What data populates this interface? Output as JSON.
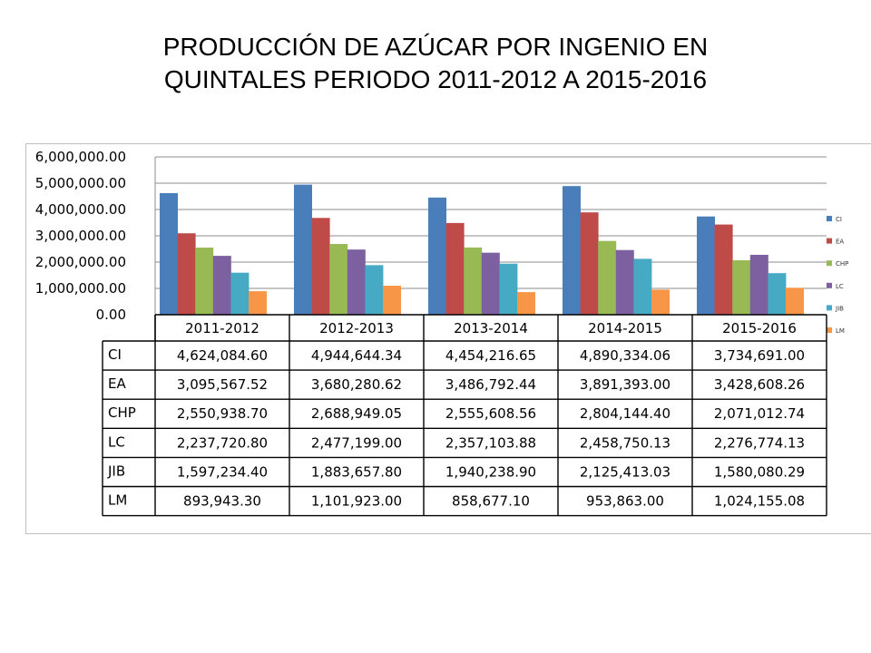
{
  "title": {
    "line1": "PRODUCCIÓN DE AZÚCAR POR INGENIO EN",
    "line2": "QUINTALES PERIODO 2011-2012  A  2015-2016"
  },
  "chart_data": {
    "type": "bar",
    "categories": [
      "2011-2012",
      "2012-2013",
      "2013-2014",
      "2014-2015",
      "2015-2016"
    ],
    "series": [
      {
        "name": "CI",
        "color": "#4a7ebb",
        "values": [
          4624084.6,
          4944644.34,
          4454216.65,
          4890334.06,
          3734691.0
        ],
        "labels": [
          "4,624,084.60",
          "4,944,644.34",
          "4,454,216.65",
          "4,890,334.06",
          "3,734,691.00"
        ]
      },
      {
        "name": "EA",
        "color": "#be4b48",
        "values": [
          3095567.52,
          3680280.62,
          3486792.44,
          3891393.0,
          3428608.26
        ],
        "labels": [
          "3,095,567.52",
          "3,680,280.62",
          "3,486,792.44",
          "3,891,393.00",
          "3,428,608.26"
        ]
      },
      {
        "name": "CHP",
        "color": "#98b954",
        "values": [
          2550938.7,
          2688949.05,
          2555608.56,
          2804144.4,
          2071012.74
        ],
        "labels": [
          "2,550,938.70",
          "2,688,949.05",
          "2,555,608.56",
          "2,804,144.40",
          "2,071,012.74"
        ]
      },
      {
        "name": "LC",
        "color": "#7d60a0",
        "values": [
          2237720.8,
          2477199.0,
          2357103.88,
          2458750.13,
          2276774.13
        ],
        "labels": [
          "2,237,720.80",
          "2,477,199.00",
          "2,357,103.88",
          "2,458,750.13",
          "2,276,774.13"
        ]
      },
      {
        "name": "JIB",
        "color": "#46aac5",
        "values": [
          1597234.4,
          1883657.8,
          1940238.9,
          2125413.03,
          1580080.29
        ],
        "labels": [
          "1,597,234.40",
          "1,883,657.80",
          "1,940,238.90",
          "2,125,413.03",
          "1,580,080.29"
        ]
      },
      {
        "name": "LM",
        "color": "#f79646",
        "values": [
          893943.3,
          1101923.0,
          858677.1,
          953863.0,
          1024155.08
        ],
        "labels": [
          "893,943.30",
          "1,101,923.00",
          "858,677.10",
          "953,863.00",
          "1,024,155.08"
        ]
      }
    ],
    "y_ticks": [
      "0.00",
      "1,000,000.00",
      "2,000,000.00",
      "3,000,000.00",
      "4,000,000.00",
      "5,000,000.00",
      "6,000,000.00"
    ],
    "ylim": [
      0,
      6000000
    ],
    "grid": true,
    "legend": "right",
    "data_table": true
  }
}
